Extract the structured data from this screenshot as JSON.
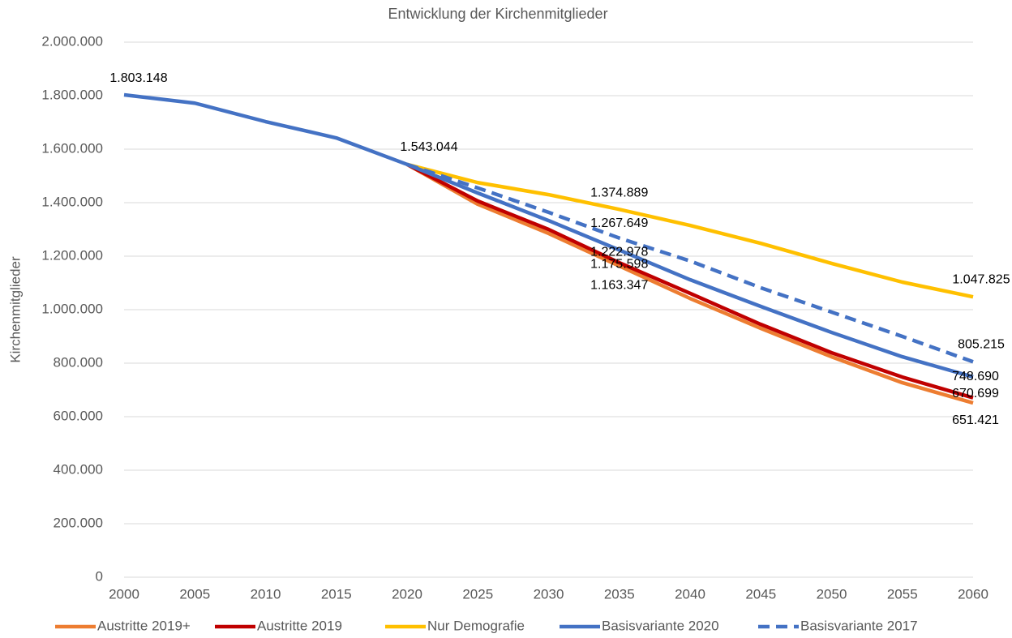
{
  "chart_data": {
    "type": "line",
    "title": "Entwicklung der Kirchenmitglieder",
    "y_label": "Kirchenmitglieder",
    "x": [
      2000,
      2005,
      2010,
      2015,
      2020,
      2025,
      2030,
      2035,
      2040,
      2045,
      2050,
      2055,
      2060
    ],
    "xlim": [
      2000,
      2060
    ],
    "xticks": [
      2000,
      2005,
      2010,
      2015,
      2020,
      2025,
      2030,
      2035,
      2040,
      2045,
      2050,
      2055,
      2060
    ],
    "ylim": [
      0,
      2000000
    ],
    "yticks": [
      {
        "value": 0,
        "label": "0"
      },
      {
        "value": 200000,
        "label": "200.000"
      },
      {
        "value": 400000,
        "label": "400.000"
      },
      {
        "value": 600000,
        "label": "600.000"
      },
      {
        "value": 800000,
        "label": "800.000"
      },
      {
        "value": 1000000,
        "label": "1.000.000"
      },
      {
        "value": 1200000,
        "label": "1.200.000"
      },
      {
        "value": 1400000,
        "label": "1.400.000"
      },
      {
        "value": 1600000,
        "label": "1.600.000"
      },
      {
        "value": 1800000,
        "label": "1.800.000"
      },
      {
        "value": 2000000,
        "label": "2.000.000"
      }
    ],
    "grid": true,
    "legend": "bottom",
    "series": [
      {
        "name": "Austritte 2019+",
        "color": "#ed7d31",
        "values": [
          null,
          null,
          null,
          null,
          1543044,
          1394000,
          1285000,
          1163347,
          1042000,
          930000,
          824000,
          727000,
          651421
        ],
        "value_labels": [
          null,
          null,
          null,
          null,
          null,
          null,
          null,
          "1.163.347",
          null,
          null,
          null,
          null,
          "651.421"
        ]
      },
      {
        "name": "Austritte 2019",
        "color": "#c00000",
        "values": [
          null,
          null,
          null,
          null,
          1543044,
          1406000,
          1300000,
          1175598,
          1061000,
          945000,
          839000,
          748000,
          670699
        ],
        "value_labels": [
          null,
          null,
          null,
          null,
          null,
          null,
          null,
          "1.175.598",
          null,
          null,
          null,
          null,
          "670.699"
        ]
      },
      {
        "name": "Nur Demografie",
        "color": "#ffc000",
        "values": [
          null,
          null,
          null,
          null,
          1543044,
          1475000,
          1430000,
          1374889,
          1315000,
          1248000,
          1173000,
          1103000,
          1047825
        ],
        "value_labels": [
          null,
          null,
          null,
          null,
          null,
          null,
          null,
          "1.374.889",
          null,
          null,
          null,
          null,
          "1.047.825"
        ]
      },
      {
        "name": "Basisvariante 2020",
        "color": "#4472c4",
        "values": [
          1803148,
          1772000,
          1703000,
          1642000,
          1543044,
          1436000,
          1333000,
          1222978,
          1112000,
          1012000,
          915000,
          824000,
          748690
        ],
        "value_labels": [
          "1.803.148",
          null,
          null,
          null,
          "1.543.044",
          null,
          null,
          "1.222.978",
          null,
          null,
          null,
          null,
          "748.690"
        ]
      },
      {
        "name": "Basisvariante 2017",
        "color": "#4472c4",
        "dashed": true,
        "values": [
          null,
          null,
          null,
          null,
          1543044,
          1455000,
          1364000,
          1267649,
          1182000,
          1082000,
          991000,
          900000,
          805215
        ],
        "value_labels": [
          null,
          null,
          null,
          null,
          null,
          null,
          null,
          "1.267.649",
          null,
          null,
          null,
          null,
          "805.215"
        ]
      }
    ]
  }
}
